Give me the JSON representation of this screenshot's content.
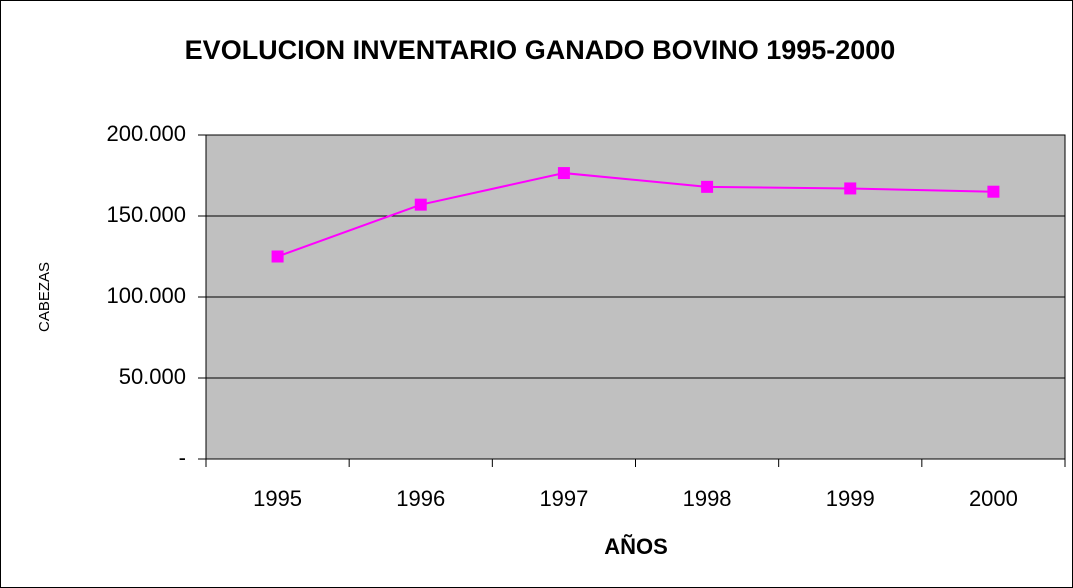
{
  "chart_data": {
    "type": "line",
    "title": "EVOLUCION INVENTARIO GANADO BOVINO 1995-2000",
    "x_label": "AÑOS",
    "y_label": "CABEZAS",
    "categories": [
      "1995",
      "1996",
      "1997",
      "1998",
      "1999",
      "2000"
    ],
    "series": [
      {
        "name": "CABEZAS",
        "color": "#ff00ff",
        "values": [
          125000,
          157000,
          176500,
          168000,
          167000,
          165000
        ]
      }
    ],
    "ylim": [
      0,
      200000
    ],
    "yticks": [
      {
        "value": 0,
        "label": "-"
      },
      {
        "value": 50000,
        "label": "50.000"
      },
      {
        "value": 100000,
        "label": "100.000"
      },
      {
        "value": 150000,
        "label": "150.000"
      },
      {
        "value": 200000,
        "label": "200.000"
      }
    ],
    "grid": true,
    "plot_background": "#c0c0c0"
  }
}
